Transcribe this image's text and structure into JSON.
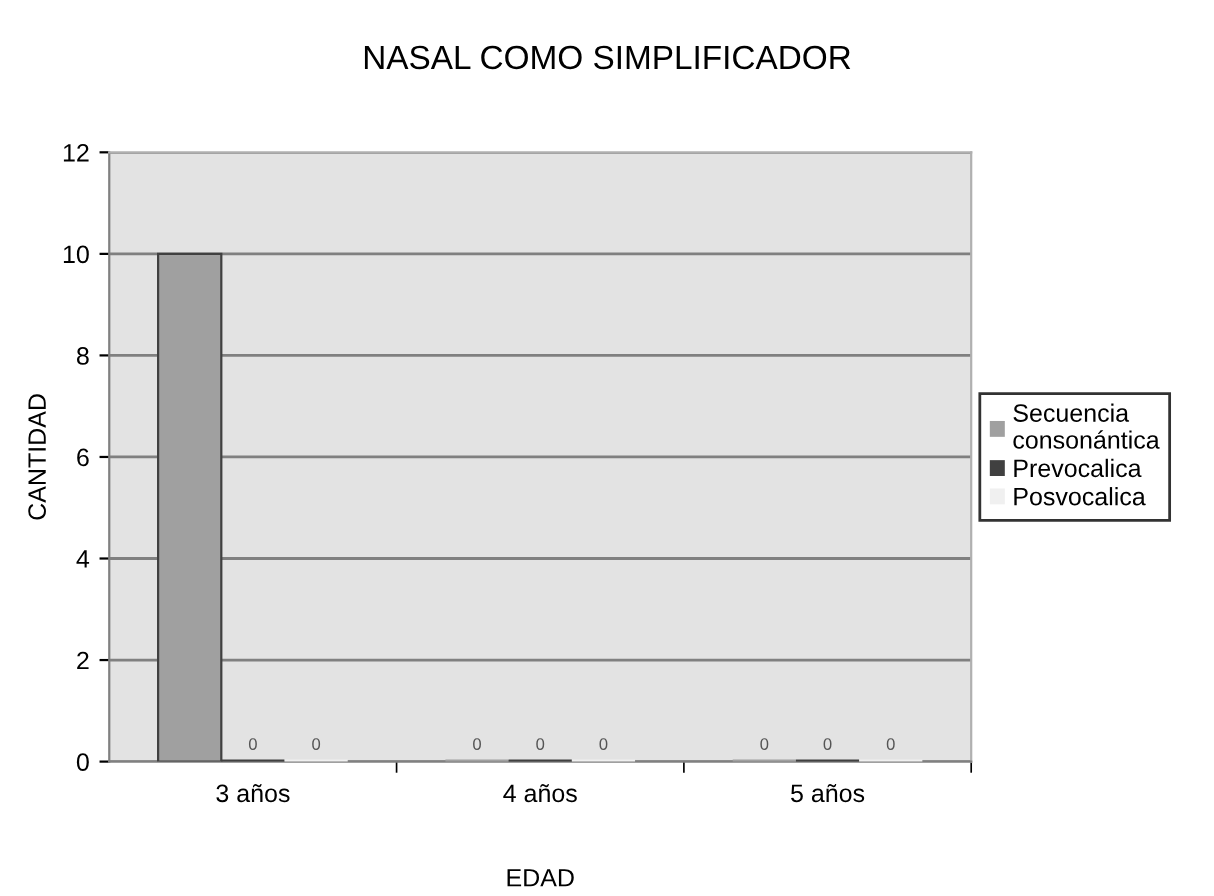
{
  "chart_data": {
    "type": "bar",
    "title": "NASAL COMO SIMPLIFICADOR",
    "xlabel": "EDAD",
    "ylabel": "CANTIDAD",
    "categories": [
      "3 años",
      "4 años",
      "5 años"
    ],
    "series": [
      {
        "name": "Secuencia\nconsonántica",
        "color": "#a0a0a0",
        "values": [
          10,
          0,
          0
        ],
        "value_labels": [
          null,
          "0",
          "0"
        ]
      },
      {
        "name": "Prevocalica",
        "color": "#404040",
        "values": [
          0,
          0,
          0
        ],
        "value_labels": [
          "0",
          "0",
          "0"
        ]
      },
      {
        "name": "Posvocalica",
        "color": "#f0f0f0",
        "values": [
          0,
          0,
          0
        ],
        "value_labels": [
          "0",
          "0",
          "0"
        ]
      }
    ],
    "ylim": [
      0,
      12
    ],
    "yticks": [
      0,
      2,
      4,
      6,
      8,
      10,
      12
    ],
    "grid": "y",
    "legend": "right"
  }
}
